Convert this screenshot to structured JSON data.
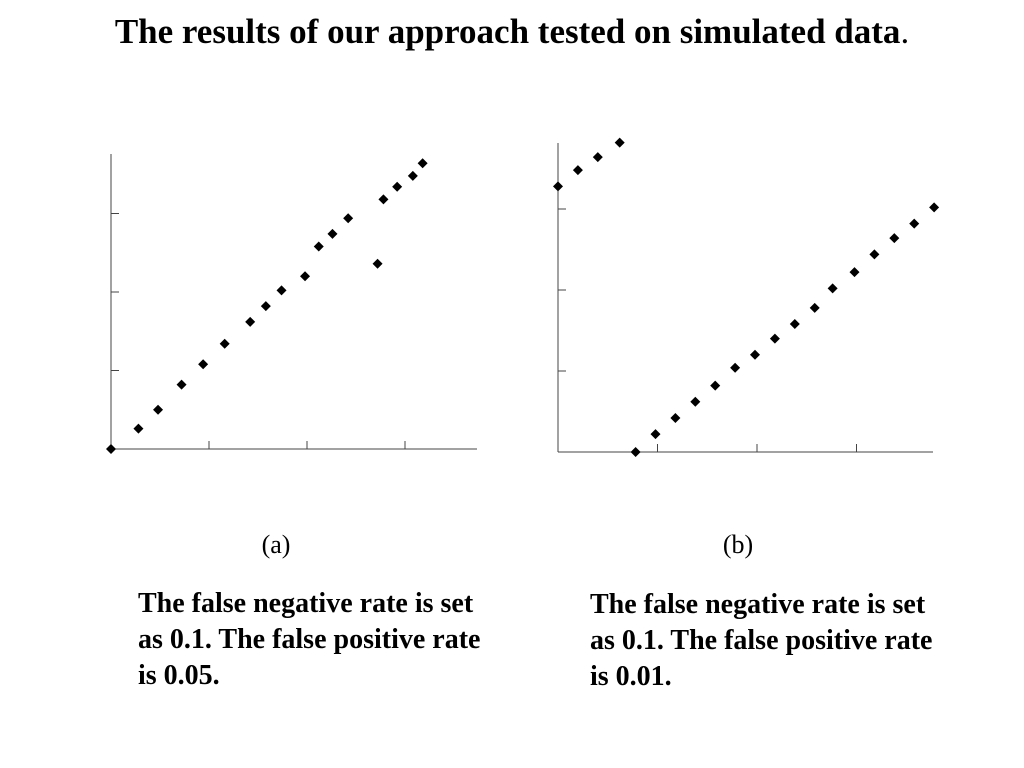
{
  "title": {
    "text": "The results of our approach tested on simulated data",
    "period": "."
  },
  "panels": [
    {
      "label": "(a)",
      "caption": "The false negative rate is set as 0.1. The false positive rate is 0.05."
    },
    {
      "label": "(b)",
      "caption": "The false negative rate is set as 0.1. The false positive rate is 0.01."
    }
  ],
  "chart_data": [
    {
      "type": "scatter",
      "title": "",
      "xlabel": "",
      "ylabel": "",
      "xlim": [
        0,
        20
      ],
      "ylim": [
        0,
        20
      ],
      "x_ticks": [
        5,
        10,
        15
      ],
      "y_ticks": [
        5,
        10,
        15
      ],
      "tick_labels_shown": false,
      "grid": false,
      "legend": "none",
      "marker": "diamond",
      "marker_color": "#000000",
      "x": [
        0.0,
        1.4,
        2.4,
        3.6,
        4.7,
        5.8,
        7.1,
        7.9,
        8.7,
        9.9,
        10.6,
        11.3,
        12.1,
        13.6,
        13.9,
        14.6,
        15.4,
        15.9
      ],
      "y": [
        0.0,
        1.3,
        2.5,
        4.1,
        5.4,
        6.7,
        8.1,
        9.1,
        10.1,
        11.0,
        12.9,
        13.7,
        14.7,
        11.8,
        15.9,
        16.7,
        17.4,
        18.2
      ]
    },
    {
      "type": "scatter",
      "title": "",
      "xlabel": "",
      "ylabel": "",
      "xlim": [
        0,
        19
      ],
      "ylim": [
        0,
        19
      ],
      "x_ticks": [
        5,
        10,
        15
      ],
      "y_ticks": [
        5,
        10,
        15
      ],
      "tick_labels_shown": false,
      "grid": false,
      "legend": "none",
      "marker": "diamond",
      "marker_color": "#000000",
      "x": [
        0.0,
        1.0,
        2.0,
        3.1,
        3.9,
        4.9,
        5.9,
        6.9,
        7.9,
        8.9,
        9.9,
        10.9,
        11.9,
        12.9,
        13.8,
        14.9,
        15.9,
        16.9,
        17.9,
        18.9
      ],
      "y": [
        16.4,
        17.4,
        18.2,
        19.1,
        0.0,
        1.1,
        2.1,
        3.1,
        4.1,
        5.2,
        6.0,
        7.0,
        7.9,
        8.9,
        10.1,
        11.1,
        12.2,
        13.2,
        14.1,
        15.1
      ]
    }
  ]
}
